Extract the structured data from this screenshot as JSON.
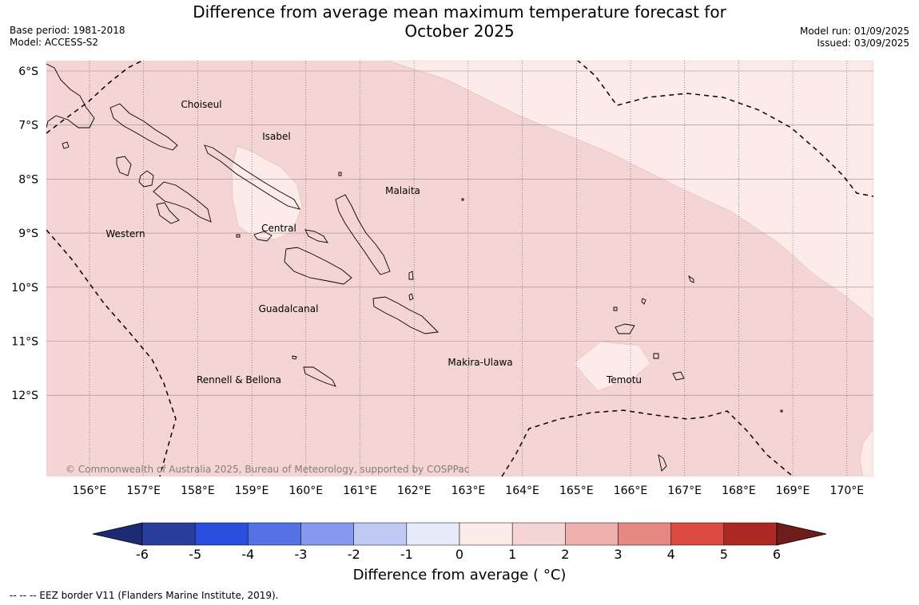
{
  "header": {
    "title_line1": "Difference from average mean maximum temperature forecast for",
    "title_line2": "October 2025",
    "base_period": "Base period: 1981-2018",
    "model": "Model: ACCESS-S2",
    "model_run": "Model run: 01/09/2025",
    "issued": "Issued: 03/09/2025"
  },
  "map": {
    "lat_labels": [
      "6°S",
      "7°S",
      "8°S",
      "9°S",
      "10°S",
      "11°S",
      "12°S"
    ],
    "lon_labels": [
      "156°E",
      "157°E",
      "158°E",
      "159°E",
      "160°E",
      "161°E",
      "162°E",
      "163°E",
      "164°E",
      "165°E",
      "166°E",
      "167°E",
      "168°E",
      "169°E",
      "170°E"
    ],
    "place_names": [
      "Choiseul",
      "Isabel",
      "Malaita",
      "Western",
      "Central",
      "Guadalcanal",
      "Makira-Ulawa",
      "Rennell & Bellona",
      "Temotu"
    ],
    "copyright": "© Commonwealth of Australia 2025, Bureau of Meteorology, supported by COSPPac",
    "colors": {
      "anomaly_1_2": "#f4d5d3",
      "anomaly_0_1": "#fcebe9",
      "coast": "#000000"
    }
  },
  "colorbar": {
    "ticks": [
      "-6",
      "-5",
      "-4",
      "-3",
      "-2",
      "-1",
      "0",
      "1",
      "2",
      "3",
      "4",
      "5",
      "6"
    ],
    "colors": [
      "#2a3e9c",
      "#2b4fdd",
      "#5572e6",
      "#8599ee",
      "#c0c8f4",
      "#e7eafb",
      "#fcebe9",
      "#f4d5d3",
      "#eeb0ad",
      "#e78882",
      "#dc4b41",
      "#ad2a24"
    ],
    "under_color": "#1c2b73",
    "over_color": "#6f1d1a",
    "title": "Difference from average ( °C)"
  },
  "footnote": "--  --  -- EEZ border V11 (Flanders Marine Institute, 2019)."
}
